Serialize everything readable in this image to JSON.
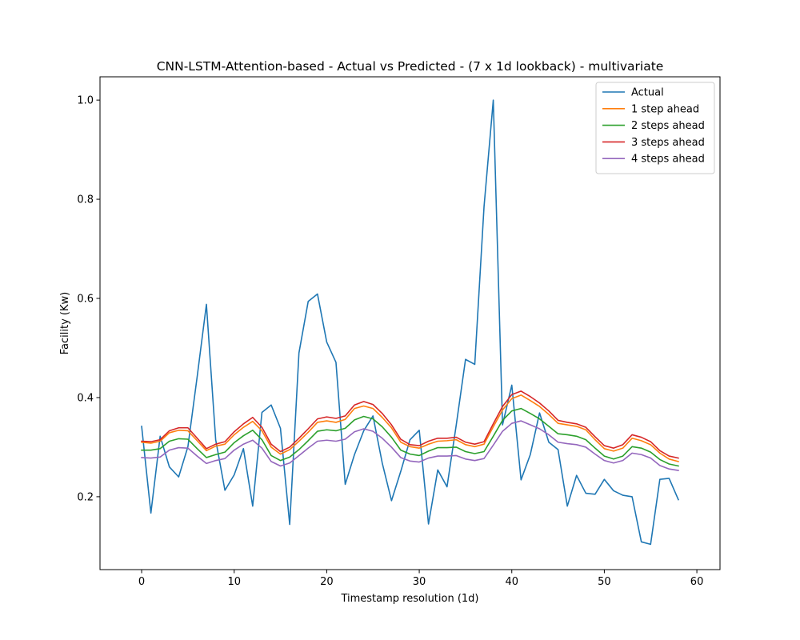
{
  "chart_data": {
    "type": "line",
    "title": "CNN-LSTM-Attention-based - Actual vs Predicted - (7 x 1d lookback) - multivariate",
    "xlabel": "Timestamp resolution (1d)",
    "ylabel": "Facility (Kw)",
    "xlim": [
      -4.5,
      62.5
    ],
    "ylim": [
      0.053,
      1.047
    ],
    "xticks": [
      0,
      10,
      20,
      30,
      40,
      50,
      60
    ],
    "xtick_labels": [
      "0",
      "10",
      "20",
      "30",
      "40",
      "50",
      "60"
    ],
    "yticks": [
      0.2,
      0.4,
      0.6,
      0.8,
      1.0
    ],
    "ytick_labels": [
      "0.2",
      "0.4",
      "0.6",
      "0.8",
      "1.0"
    ],
    "grid": false,
    "legend_position": "upper right",
    "x": [
      0,
      1,
      2,
      3,
      4,
      5,
      6,
      7,
      8,
      9,
      10,
      11,
      12,
      13,
      14,
      15,
      16,
      17,
      18,
      19,
      20,
      21,
      22,
      23,
      24,
      25,
      26,
      27,
      28,
      29,
      30,
      31,
      32,
      33,
      34,
      35,
      36,
      37,
      38,
      39,
      40,
      41,
      42,
      43,
      44,
      45,
      46,
      47,
      48,
      49,
      50,
      51,
      52,
      53,
      54,
      55,
      56,
      57,
      58
    ],
    "series": [
      {
        "name": "Actual",
        "color": "#1f77b4",
        "values": [
          0.342,
          0.167,
          0.322,
          0.26,
          0.24,
          0.301,
          0.442,
          0.588,
          0.315,
          0.213,
          0.244,
          0.297,
          0.181,
          0.37,
          0.385,
          0.338,
          0.144,
          0.49,
          0.594,
          0.609,
          0.512,
          0.471,
          0.225,
          0.285,
          0.333,
          0.363,
          0.268,
          0.192,
          0.251,
          0.315,
          0.334,
          0.145,
          0.254,
          0.22,
          0.345,
          0.477,
          0.467,
          0.785,
          1.0,
          0.345,
          0.425,
          0.234,
          0.285,
          0.369,
          0.31,
          0.295,
          0.181,
          0.243,
          0.207,
          0.205,
          0.235,
          0.212,
          0.203,
          0.2,
          0.109,
          0.104,
          0.235,
          0.237,
          0.194
        ]
      },
      {
        "name": "1 step ahead",
        "color": "#ff7f0e",
        "values": [
          0.31,
          0.308,
          0.312,
          0.329,
          0.334,
          0.333,
          0.313,
          0.293,
          0.302,
          0.306,
          0.325,
          0.34,
          0.352,
          0.333,
          0.3,
          0.286,
          0.295,
          0.312,
          0.33,
          0.35,
          0.353,
          0.35,
          0.356,
          0.378,
          0.383,
          0.378,
          0.36,
          0.339,
          0.31,
          0.301,
          0.298,
          0.306,
          0.312,
          0.313,
          0.315,
          0.305,
          0.301,
          0.306,
          0.341,
          0.375,
          0.398,
          0.405,
          0.394,
          0.382,
          0.366,
          0.348,
          0.345,
          0.342,
          0.335,
          0.315,
          0.297,
          0.292,
          0.298,
          0.318,
          0.313,
          0.305,
          0.288,
          0.276,
          0.271
        ]
      },
      {
        "name": "2 steps ahead",
        "color": "#2ca02c",
        "values": [
          0.294,
          0.294,
          0.297,
          0.312,
          0.317,
          0.316,
          0.297,
          0.279,
          0.285,
          0.29,
          0.309,
          0.323,
          0.334,
          0.315,
          0.283,
          0.273,
          0.28,
          0.295,
          0.313,
          0.332,
          0.335,
          0.333,
          0.338,
          0.355,
          0.362,
          0.357,
          0.341,
          0.32,
          0.294,
          0.286,
          0.283,
          0.292,
          0.299,
          0.299,
          0.3,
          0.291,
          0.287,
          0.291,
          0.322,
          0.354,
          0.373,
          0.378,
          0.368,
          0.357,
          0.342,
          0.327,
          0.325,
          0.322,
          0.315,
          0.298,
          0.282,
          0.276,
          0.282,
          0.301,
          0.298,
          0.29,
          0.275,
          0.266,
          0.262
        ]
      },
      {
        "name": "3 steps ahead",
        "color": "#d62728",
        "values": [
          0.312,
          0.311,
          0.315,
          0.333,
          0.339,
          0.339,
          0.318,
          0.297,
          0.306,
          0.311,
          0.331,
          0.347,
          0.36,
          0.34,
          0.306,
          0.291,
          0.3,
          0.318,
          0.337,
          0.357,
          0.361,
          0.358,
          0.363,
          0.385,
          0.392,
          0.386,
          0.368,
          0.345,
          0.316,
          0.305,
          0.303,
          0.312,
          0.318,
          0.318,
          0.32,
          0.31,
          0.306,
          0.311,
          0.347,
          0.382,
          0.406,
          0.413,
          0.402,
          0.389,
          0.373,
          0.354,
          0.35,
          0.347,
          0.34,
          0.321,
          0.303,
          0.298,
          0.305,
          0.325,
          0.32,
          0.311,
          0.293,
          0.282,
          0.278
        ]
      },
      {
        "name": "4 steps ahead",
        "color": "#9467bd",
        "values": [
          0.279,
          0.278,
          0.28,
          0.294,
          0.299,
          0.298,
          0.282,
          0.267,
          0.273,
          0.277,
          0.294,
          0.306,
          0.314,
          0.298,
          0.271,
          0.262,
          0.268,
          0.283,
          0.298,
          0.312,
          0.314,
          0.312,
          0.316,
          0.331,
          0.337,
          0.332,
          0.318,
          0.3,
          0.279,
          0.272,
          0.27,
          0.278,
          0.282,
          0.282,
          0.283,
          0.276,
          0.273,
          0.277,
          0.304,
          0.332,
          0.348,
          0.353,
          0.345,
          0.337,
          0.325,
          0.31,
          0.307,
          0.305,
          0.3,
          0.286,
          0.273,
          0.268,
          0.273,
          0.288,
          0.285,
          0.278,
          0.263,
          0.256,
          0.253
        ]
      }
    ]
  }
}
